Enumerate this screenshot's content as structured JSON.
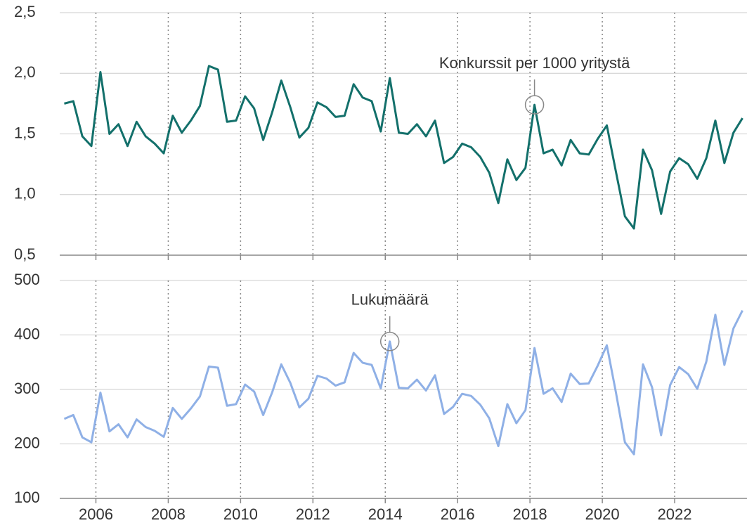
{
  "chart_data": [
    {
      "type": "line",
      "x": [
        2005.125,
        2005.375,
        2005.625,
        2005.875,
        2006.125,
        2006.375,
        2006.625,
        2006.875,
        2007.125,
        2007.375,
        2007.625,
        2007.875,
        2008.125,
        2008.375,
        2008.625,
        2008.875,
        2009.125,
        2009.375,
        2009.625,
        2009.875,
        2010.125,
        2010.375,
        2010.625,
        2010.875,
        2011.125,
        2011.375,
        2011.625,
        2011.875,
        2012.125,
        2012.375,
        2012.625,
        2012.875,
        2013.125,
        2013.375,
        2013.625,
        2013.875,
        2014.125,
        2014.375,
        2014.625,
        2014.875,
        2015.125,
        2015.375,
        2015.625,
        2015.875,
        2016.125,
        2016.375,
        2016.625,
        2016.875,
        2017.125,
        2017.375,
        2017.625,
        2017.875,
        2018.125,
        2018.375,
        2018.625,
        2018.875,
        2019.125,
        2019.375,
        2019.625,
        2019.875,
        2020.125,
        2020.375,
        2020.625,
        2020.875,
        2021.125,
        2021.375,
        2021.625,
        2021.875,
        2022.125,
        2022.375,
        2022.625,
        2022.875,
        2023.125,
        2023.375,
        2023.625,
        2023.875
      ],
      "series": [
        {
          "name": "Konkurssit per 1000 yritystä",
          "color": "#13706b",
          "values": [
            1.75,
            1.77,
            1.48,
            1.4,
            2.01,
            1.5,
            1.58,
            1.4,
            1.6,
            1.48,
            1.42,
            1.34,
            1.65,
            1.51,
            1.61,
            1.73,
            2.06,
            2.03,
            1.6,
            1.61,
            1.81,
            1.71,
            1.45,
            1.68,
            1.94,
            1.72,
            1.47,
            1.55,
            1.76,
            1.72,
            1.64,
            1.65,
            1.91,
            1.8,
            1.77,
            1.52,
            1.96,
            1.51,
            1.5,
            1.58,
            1.48,
            1.61,
            1.26,
            1.31,
            1.42,
            1.39,
            1.31,
            1.18,
            0.93,
            1.29,
            1.12,
            1.22,
            1.74,
            1.34,
            1.37,
            1.24,
            1.45,
            1.34,
            1.33,
            1.46,
            1.57,
            1.19,
            0.82,
            0.72,
            1.37,
            1.2,
            0.84,
            1.19,
            1.3,
            1.25,
            1.13,
            1.3,
            1.61,
            1.26,
            1.51,
            1.63
          ]
        }
      ],
      "annotations": [
        {
          "text": "Konkurssit per 1000 yritystä",
          "x": 2018.125
        }
      ],
      "xlim": [
        2005,
        2024
      ],
      "xticks": [
        2006,
        2008,
        2010,
        2012,
        2014,
        2016,
        2018,
        2020,
        2022
      ],
      "ylim": [
        0.5,
        2.5
      ],
      "yticks": [
        {
          "value": 0.5,
          "label": "0,5"
        },
        {
          "value": 1.0,
          "label": "1,0"
        },
        {
          "value": 1.5,
          "label": "1,5"
        },
        {
          "value": 2.0,
          "label": "2,0"
        },
        {
          "value": 2.5,
          "label": "2,5"
        }
      ],
      "grid": true
    },
    {
      "type": "line",
      "x": [
        2005.125,
        2005.375,
        2005.625,
        2005.875,
        2006.125,
        2006.375,
        2006.625,
        2006.875,
        2007.125,
        2007.375,
        2007.625,
        2007.875,
        2008.125,
        2008.375,
        2008.625,
        2008.875,
        2009.125,
        2009.375,
        2009.625,
        2009.875,
        2010.125,
        2010.375,
        2010.625,
        2010.875,
        2011.125,
        2011.375,
        2011.625,
        2011.875,
        2012.125,
        2012.375,
        2012.625,
        2012.875,
        2013.125,
        2013.375,
        2013.625,
        2013.875,
        2014.125,
        2014.375,
        2014.625,
        2014.875,
        2015.125,
        2015.375,
        2015.625,
        2015.875,
        2016.125,
        2016.375,
        2016.625,
        2016.875,
        2017.125,
        2017.375,
        2017.625,
        2017.875,
        2018.125,
        2018.375,
        2018.625,
        2018.875,
        2019.125,
        2019.375,
        2019.625,
        2019.875,
        2020.125,
        2020.375,
        2020.625,
        2020.875,
        2021.125,
        2021.375,
        2021.625,
        2021.875,
        2022.125,
        2022.375,
        2022.625,
        2022.875,
        2023.125,
        2023.375,
        2023.625,
        2023.875
      ],
      "series": [
        {
          "name": "Lukumäärä",
          "color": "#8fb0e6",
          "values": [
            246,
            253,
            212,
            203,
            294,
            223,
            236,
            212,
            245,
            231,
            224,
            213,
            266,
            246,
            265,
            287,
            342,
            340,
            270,
            273,
            309,
            296,
            253,
            295,
            346,
            312,
            267,
            283,
            325,
            320,
            307,
            313,
            367,
            349,
            345,
            302,
            388,
            303,
            302,
            318,
            298,
            326,
            255,
            268,
            292,
            288,
            272,
            247,
            196,
            273,
            238,
            262,
            376,
            292,
            302,
            277,
            329,
            310,
            311,
            344,
            381,
            295,
            203,
            181,
            346,
            304,
            216,
            308,
            341,
            328,
            301,
            351,
            437,
            345,
            412,
            445
          ]
        }
      ],
      "annotations": [
        {
          "text": "Lukumäärä",
          "x": 2014.125
        }
      ],
      "xlim": [
        2005,
        2024
      ],
      "xticks": [
        2006,
        2008,
        2010,
        2012,
        2014,
        2016,
        2018,
        2020,
        2022
      ],
      "ylim": [
        100,
        500
      ],
      "yticks": [
        100,
        200,
        300,
        400,
        500
      ],
      "grid": true
    }
  ]
}
